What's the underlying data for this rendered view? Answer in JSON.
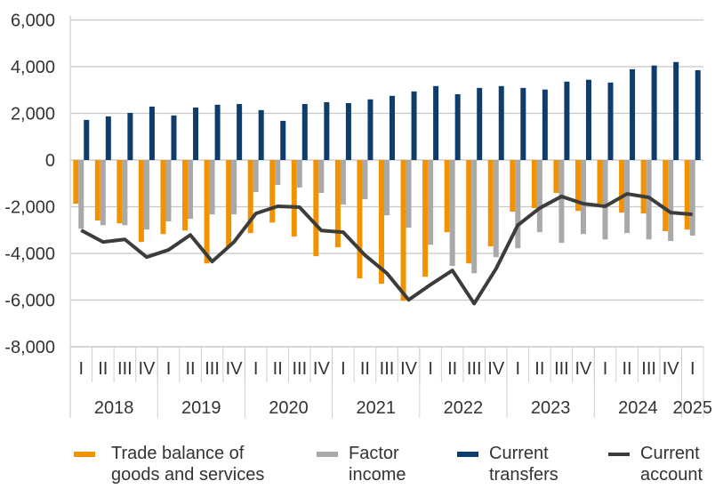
{
  "chart_data": {
    "type": "bar+line",
    "y_ticks": [
      "6,000",
      "4,000",
      "2,000",
      "0",
      "-2,000",
      "-4,000",
      "-6,000",
      "-8,000"
    ],
    "ylim": [
      -8000,
      6000
    ],
    "grid": "horizontal",
    "legend_placement": "bottom",
    "years": [
      {
        "label": "2018",
        "quarters": 4
      },
      {
        "label": "2019",
        "quarters": 4
      },
      {
        "label": "2020",
        "quarters": 4
      },
      {
        "label": "2021",
        "quarters": 4
      },
      {
        "label": "2022",
        "quarters": 4
      },
      {
        "label": "2023",
        "quarters": 4
      },
      {
        "label": "2024",
        "quarters": 4
      },
      {
        "label": "2025",
        "quarters": 1
      }
    ],
    "quarter_labels": [
      "I",
      "II",
      "III",
      "IV",
      "I",
      "II",
      "III",
      "IV",
      "I",
      "II",
      "III",
      "IV",
      "I",
      "II",
      "III",
      "IV",
      "I",
      "II",
      "III",
      "IV",
      "I",
      "II",
      "III",
      "IV",
      "I",
      "II",
      "III",
      "IV",
      "I"
    ],
    "series": [
      {
        "name": "Trade balance of goods and services",
        "type": "bar",
        "color": "#f39200",
        "values": [
          -1870,
          -2590,
          -2710,
          -3510,
          -3170,
          -3020,
          -4430,
          -3700,
          -3130,
          -2680,
          -3280,
          -4120,
          -3740,
          -5070,
          -5300,
          -6030,
          -5000,
          -3090,
          -4430,
          -3700,
          -2210,
          -2060,
          -1410,
          -2180,
          -1870,
          -2250,
          -2290,
          -3050,
          -2980
        ]
      },
      {
        "name": "Factor income",
        "type": "bar",
        "color": "#a8a9a8",
        "values": [
          -2940,
          -2790,
          -2790,
          -2980,
          -2630,
          -2520,
          -2330,
          -2330,
          -1370,
          -1070,
          -1180,
          -1410,
          -1910,
          -1680,
          -2370,
          -2900,
          -3630,
          -4540,
          -4850,
          -4160,
          -3780,
          -3090,
          -3550,
          -3170,
          -3400,
          -3130,
          -3400,
          -3470,
          -3240
        ]
      },
      {
        "name": "Current transfers",
        "type": "bar",
        "color": "#0e3d6b",
        "values": [
          1720,
          1870,
          2020,
          2290,
          1910,
          2250,
          2370,
          2400,
          2140,
          1680,
          2400,
          2480,
          2440,
          2600,
          2750,
          2940,
          3170,
          2820,
          3090,
          3170,
          3090,
          3020,
          3360,
          3440,
          3320,
          3890,
          4050,
          4200,
          3850
        ]
      },
      {
        "name": "Current account",
        "type": "line",
        "color": "#3c3c3b",
        "values": [
          -3010,
          -3510,
          -3400,
          -4160,
          -3850,
          -3210,
          -4350,
          -3510,
          -2290,
          -1980,
          -2020,
          -3020,
          -3090,
          -4080,
          -4850,
          -5990,
          -5340,
          -4730,
          -6150,
          -4660,
          -2790,
          -2060,
          -1560,
          -1870,
          -1980,
          -1450,
          -1600,
          -2250,
          -2330
        ]
      }
    ]
  },
  "legend": [
    {
      "label": "Trade balance of\ngoods and services",
      "color": "#f39200"
    },
    {
      "label": "Factor\nincome",
      "color": "#a8a9a8"
    },
    {
      "label": "Current\ntransfers",
      "color": "#0e3d6b"
    },
    {
      "label": "Current\naccount",
      "color": "#3c3c3b"
    }
  ]
}
